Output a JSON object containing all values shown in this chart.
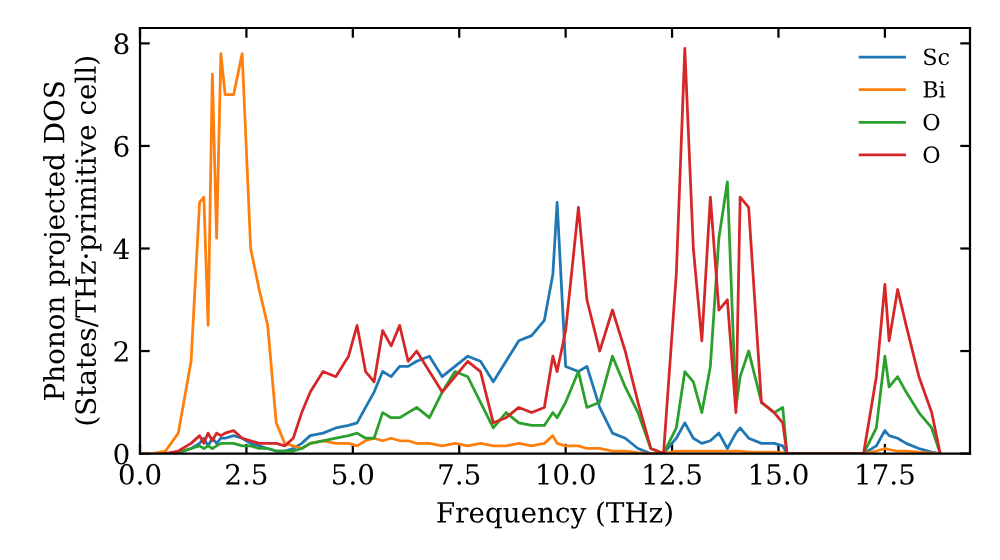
{
  "chart_data": {
    "type": "line",
    "xlabel": "Frequency (THz)",
    "ylabel": "Phonon projected DOS\n(States/THz·primitive cell)",
    "x": [
      0,
      0.3,
      0.6,
      0.9,
      1.2,
      1.4,
      1.5,
      1.6,
      1.7,
      1.8,
      1.9,
      2.0,
      2.2,
      2.4,
      2.6,
      2.8,
      3.0,
      3.2,
      3.4,
      3.6,
      3.8,
      4.0,
      4.3,
      4.6,
      4.9,
      5.1,
      5.3,
      5.5,
      5.7,
      5.9,
      6.1,
      6.3,
      6.5,
      6.8,
      7.1,
      7.4,
      7.7,
      8.0,
      8.3,
      8.6,
      8.9,
      9.2,
      9.5,
      9.7,
      9.8,
      10.0,
      10.3,
      10.5,
      10.8,
      11.1,
      11.4,
      11.7,
      12.0,
      12.3,
      12.6,
      12.8,
      13.0,
      13.2,
      13.4,
      13.6,
      13.8,
      14.0,
      14.1,
      14.3,
      14.6,
      14.9,
      15.1,
      15.2,
      17.0,
      17.3,
      17.5,
      17.6,
      17.8,
      18.0,
      18.3,
      18.6,
      18.8
    ],
    "series": [
      {
        "name": "Sc",
        "color": "#1f77b4",
        "values": [
          null,
          null,
          null,
          0.02,
          0.1,
          0.2,
          0.3,
          0.15,
          0.3,
          0.2,
          0.3,
          0.3,
          0.35,
          0.3,
          0.2,
          0.15,
          0.1,
          0.05,
          0.05,
          0.1,
          0.2,
          0.35,
          0.4,
          0.5,
          0.55,
          0.6,
          0.9,
          1.2,
          1.6,
          1.5,
          1.7,
          1.7,
          1.8,
          1.9,
          1.5,
          1.7,
          1.9,
          1.8,
          1.4,
          1.8,
          2.2,
          2.3,
          2.6,
          3.5,
          4.9,
          1.7,
          1.6,
          1.7,
          0.9,
          0.4,
          0.3,
          0.1,
          0,
          0,
          0.3,
          0.6,
          0.3,
          0.2,
          0.25,
          0.4,
          0.1,
          0.4,
          0.5,
          0.3,
          0.2,
          0.2,
          0.15,
          0,
          0,
          0.15,
          0.45,
          0.35,
          0.3,
          0.2,
          0.1,
          0.03,
          0
        ]
      },
      {
        "name": "Bi",
        "color": "#ff7f0e",
        "values": [
          0,
          0,
          0.05,
          0.4,
          1.8,
          4.9,
          5.0,
          2.5,
          7.4,
          4.2,
          7.8,
          7.0,
          7.0,
          7.8,
          4.0,
          3.2,
          2.5,
          0.6,
          0.2,
          0.15,
          0.1,
          0.2,
          0.25,
          0.2,
          0.2,
          0.15,
          0.25,
          0.3,
          0.25,
          0.3,
          0.25,
          0.25,
          0.2,
          0.2,
          0.15,
          0.2,
          0.15,
          0.2,
          0.15,
          0.15,
          0.2,
          0.15,
          0.2,
          0.35,
          0.2,
          0.15,
          0.15,
          0.1,
          0.1,
          0.05,
          0.05,
          0.02,
          0,
          0,
          0.05,
          0.05,
          0.05,
          0.05,
          0.05,
          0.05,
          0.05,
          0.05,
          0.05,
          0.03,
          0.03,
          0.03,
          0.02,
          0,
          0,
          0.05,
          0.1,
          0.08,
          0.05,
          0.05,
          0.03,
          0.01,
          0
        ]
      },
      {
        "name": "O",
        "color": "#2ca02c",
        "values": [
          null,
          null,
          0,
          0.02,
          0.1,
          0.15,
          0.1,
          0.15,
          0.1,
          0.15,
          0.2,
          0.2,
          0.2,
          0.15,
          0.15,
          0.1,
          0.1,
          0.05,
          0.05,
          0.05,
          0.1,
          0.2,
          0.25,
          0.3,
          0.35,
          0.4,
          0.3,
          0.3,
          0.8,
          0.7,
          0.7,
          0.8,
          0.9,
          0.7,
          1.2,
          1.6,
          1.5,
          1.0,
          0.5,
          0.8,
          0.6,
          0.55,
          0.55,
          0.8,
          0.7,
          1.0,
          1.6,
          0.9,
          1.0,
          1.9,
          1.3,
          0.8,
          0.1,
          0,
          0.5,
          1.6,
          1.4,
          0.8,
          1.7,
          4.2,
          5.3,
          0.9,
          1.5,
          2.0,
          1.0,
          0.8,
          0.9,
          0,
          0,
          0.5,
          1.9,
          1.3,
          1.5,
          1.2,
          0.8,
          0.5,
          0
        ]
      },
      {
        "name": "O",
        "color": "#d62728",
        "values": [
          null,
          null,
          0,
          0.05,
          0.2,
          0.35,
          0.2,
          0.4,
          0.25,
          0.4,
          0.35,
          0.4,
          0.45,
          0.3,
          0.25,
          0.2,
          0.2,
          0.2,
          0.15,
          0.3,
          0.8,
          1.2,
          1.6,
          1.5,
          1.9,
          2.5,
          1.6,
          1.4,
          2.4,
          2.1,
          2.5,
          1.8,
          2.0,
          1.6,
          1.2,
          1.5,
          1.8,
          1.6,
          0.6,
          0.7,
          0.9,
          0.8,
          0.9,
          1.9,
          1.6,
          2.4,
          4.8,
          3.0,
          2.0,
          2.8,
          2.0,
          1.0,
          0.1,
          0,
          3.5,
          7.9,
          4.0,
          2.2,
          5.0,
          2.8,
          3.0,
          0.8,
          5.0,
          4.8,
          1.0,
          0.8,
          0.6,
          0,
          0,
          1.5,
          3.3,
          2.2,
          3.2,
          2.5,
          1.5,
          0.8,
          0
        ]
      }
    ],
    "xlim": [
      0,
      19.5
    ],
    "ylim": [
      0,
      8.3
    ],
    "xticks": [
      {
        "value": 0,
        "label": "0.0"
      },
      {
        "value": 2.5,
        "label": "2.5"
      },
      {
        "value": 5,
        "label": "5.0"
      },
      {
        "value": 7.5,
        "label": "7.5"
      },
      {
        "value": 10,
        "label": "10.0"
      },
      {
        "value": 12.5,
        "label": "12.5"
      },
      {
        "value": 15,
        "label": "15.0"
      },
      {
        "value": 17.5,
        "label": "17.5"
      }
    ],
    "yticks": [
      0,
      2,
      4,
      6,
      8
    ],
    "legend": "top right",
    "grid": false
  }
}
